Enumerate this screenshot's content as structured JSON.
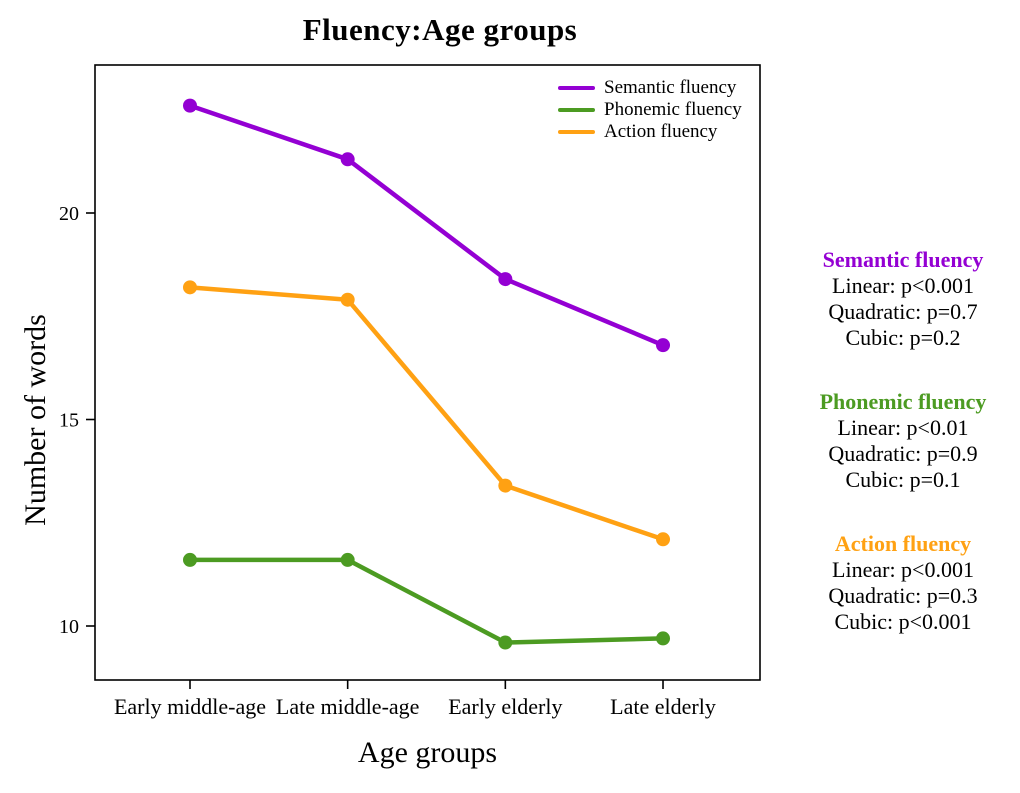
{
  "title": "Fluency:Age groups",
  "chart_data": {
    "type": "line",
    "title": "Fluency:Age groups",
    "xlabel": "Age groups",
    "ylabel": "Number of words",
    "categories": [
      "Early middle-age",
      "Late middle-age",
      "Early elderly",
      "Late elderly"
    ],
    "series": [
      {
        "name": "Semantic fluency",
        "color": "#9400D3",
        "values": [
          22.6,
          21.3,
          18.4,
          16.8
        ]
      },
      {
        "name": "Phonemic fluency",
        "color": "#4C9B22",
        "values": [
          11.6,
          11.6,
          9.6,
          9.7
        ]
      },
      {
        "name": "Action fluency",
        "color": "#FFA113",
        "values": [
          18.2,
          17.9,
          13.4,
          12.1
        ]
      }
    ],
    "yticks": [
      10,
      15,
      20
    ],
    "ylim": [
      8.7,
      23.6
    ],
    "grid": false,
    "legend_position": "top-right-inside",
    "marker": "filled-circle"
  },
  "legend": {
    "items": [
      "Semantic fluency",
      "Phonemic fluency",
      "Action fluency"
    ]
  },
  "stats_panel": {
    "blocks": [
      {
        "heading": "Semantic fluency",
        "color": "#9400D3",
        "lines": [
          "Linear: p<0.001",
          "Quadratic: p=0.7",
          "Cubic: p=0.2"
        ]
      },
      {
        "heading": "Phonemic fluency",
        "color": "#4C9B22",
        "lines": [
          "Linear: p<0.01",
          "Quadratic: p=0.9",
          "Cubic: p=0.1"
        ]
      },
      {
        "heading": "Action fluency",
        "color": "#FFA113",
        "lines": [
          "Linear: p<0.001",
          "Quadratic: p=0.3",
          "Cubic: p<0.001"
        ]
      }
    ]
  }
}
